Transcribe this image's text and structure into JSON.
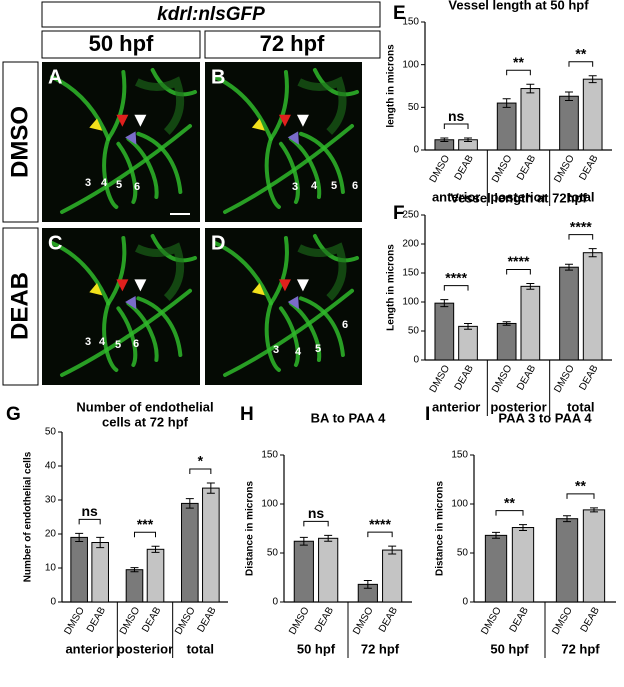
{
  "figure": {
    "header": "kdrl:nlsGFP",
    "columns": [
      "50 hpf",
      "72 hpf"
    ],
    "rows": [
      "DMSO",
      "DEAB"
    ],
    "panels": [
      {
        "label": "A",
        "arch_labels": [
          "3",
          "4",
          "5",
          "6"
        ]
      },
      {
        "label": "B",
        "arch_labels": [
          "3",
          "4",
          "5",
          "6"
        ]
      },
      {
        "label": "C",
        "arch_labels": [
          "3",
          "4",
          "5",
          "6"
        ]
      },
      {
        "label": "D",
        "arch_labels": [
          "3",
          "4",
          "5",
          "6"
        ]
      }
    ]
  },
  "chart_data": [
    {
      "type": "bar",
      "panel": "E",
      "title": [
        "Vessel length at 50 hpf"
      ],
      "ylabel": "length in microns",
      "categories": [
        "DMSO",
        "DEAB",
        "DMSO",
        "DEAB",
        "DMSO",
        "DEAB"
      ],
      "groups": [
        "anterior",
        "posterior",
        "total"
      ],
      "values": [
        12,
        12,
        55,
        72,
        63,
        83
      ],
      "errors": [
        2,
        2,
        5,
        5,
        5,
        4
      ],
      "colors": [
        "#7a7a7a",
        "#c4c4c4"
      ],
      "significance": [
        "ns",
        "**",
        "**"
      ],
      "ylim": [
        0,
        150
      ],
      "yticks": [
        0,
        50,
        100,
        150
      ]
    },
    {
      "type": "bar",
      "panel": "F",
      "title": [
        "Vessel length at 72hpf"
      ],
      "ylabel": "Length in microns",
      "categories": [
        "DMSO",
        "DEAB",
        "DMSO",
        "DEAB",
        "DMSO",
        "DEAB"
      ],
      "groups": [
        "anterior",
        "posterior",
        "total"
      ],
      "values": [
        98,
        58,
        63,
        127,
        160,
        185
      ],
      "errors": [
        6,
        5,
        3,
        5,
        5,
        7
      ],
      "colors": [
        "#7a7a7a",
        "#c4c4c4"
      ],
      "significance": [
        "****",
        "****",
        "****"
      ],
      "ylim": [
        0,
        250
      ],
      "yticks": [
        0,
        50,
        100,
        150,
        200,
        250
      ]
    },
    {
      "type": "bar",
      "panel": "G",
      "title": [
        "Number of endothelial",
        "cells at 72 hpf"
      ],
      "ylabel": "Number of endothelial cells",
      "categories": [
        "DMSO",
        "DEAB",
        "DMSO",
        "DEAB",
        "DMSO",
        "DEAB"
      ],
      "groups": [
        "anterior",
        "posterior",
        "total"
      ],
      "values": [
        19,
        17.5,
        9.5,
        15.5,
        29,
        33.5
      ],
      "errors": [
        1.2,
        1.5,
        0.6,
        0.9,
        1.4,
        1.5
      ],
      "colors": [
        "#7a7a7a",
        "#c4c4c4"
      ],
      "significance": [
        "ns",
        "***",
        "*"
      ],
      "ylim": [
        0,
        50
      ],
      "yticks": [
        0,
        10,
        20,
        30,
        40,
        50
      ]
    },
    {
      "type": "bar",
      "panel": "H",
      "title": [
        "BA to PAA 4"
      ],
      "ylabel": "Distance in microns",
      "categories": [
        "DMSO",
        "DEAB",
        "DMSO",
        "DEAB"
      ],
      "groups": [
        "50 hpf",
        "72 hpf"
      ],
      "values": [
        62,
        65,
        18,
        53
      ],
      "errors": [
        4,
        3,
        4,
        4
      ],
      "colors": [
        "#7a7a7a",
        "#c4c4c4"
      ],
      "significance": [
        "ns",
        "****"
      ],
      "ylim": [
        0,
        150
      ],
      "yticks": [
        0,
        50,
        100,
        150
      ]
    },
    {
      "type": "bar",
      "panel": "I",
      "title": [
        "PAA 3 to PAA 4"
      ],
      "ylabel": "Distance in microns",
      "categories": [
        "DMSO",
        "DEAB",
        "DMSO",
        "DEAB"
      ],
      "groups": [
        "50 hpf",
        "72 hpf"
      ],
      "values": [
        68,
        76,
        85,
        94
      ],
      "errors": [
        3,
        3,
        3,
        2
      ],
      "colors": [
        "#7a7a7a",
        "#c4c4c4"
      ],
      "significance": [
        "**",
        "**"
      ],
      "ylim": [
        0,
        150
      ],
      "yticks": [
        0,
        50,
        100,
        150
      ]
    }
  ]
}
